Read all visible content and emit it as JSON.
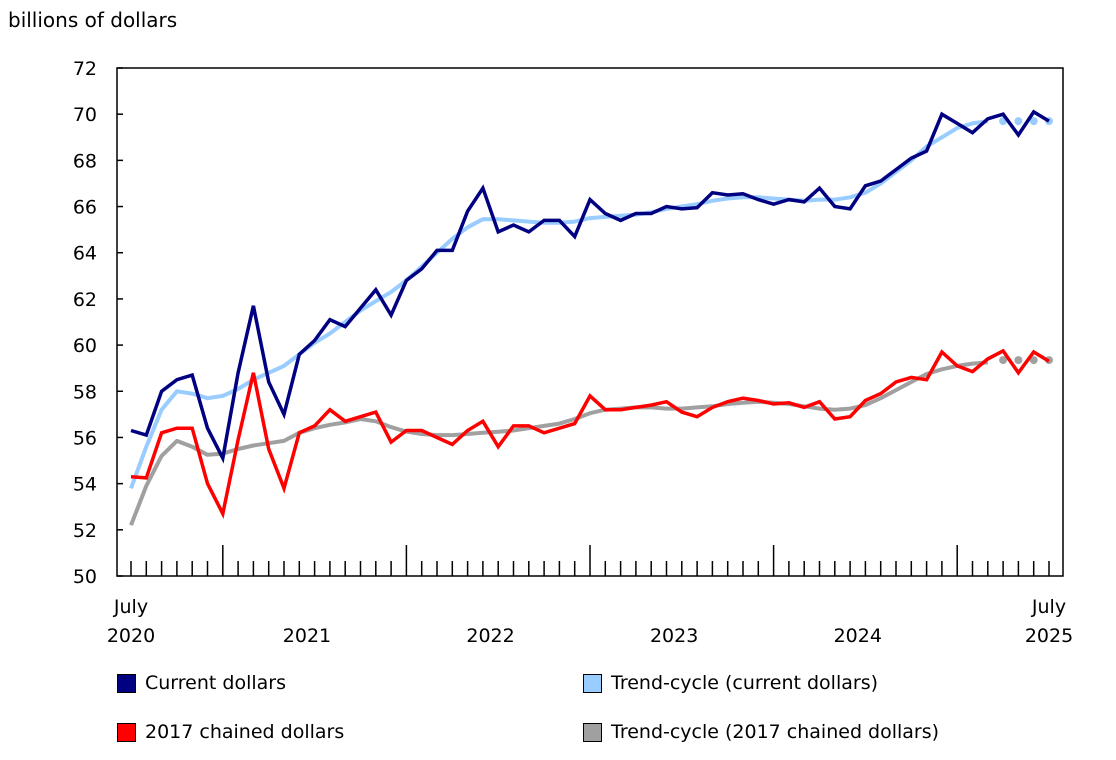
{
  "chart_data": {
    "type": "line",
    "ylabel": "billions of dollars",
    "ylim": [
      50,
      72
    ],
    "yticks": [
      "50",
      "52",
      "54",
      "56",
      "58",
      "60",
      "62",
      "64",
      "66",
      "68",
      "70",
      "72"
    ],
    "x_start": "July 2020",
    "x_end": "July 2025",
    "x_tick_labels": [
      {
        "top": "July",
        "bottom": "2020"
      },
      {
        "top": "",
        "bottom": "2021"
      },
      {
        "top": "",
        "bottom": "2022"
      },
      {
        "top": "",
        "bottom": "2023"
      },
      {
        "top": "",
        "bottom": "2024"
      },
      {
        "top": "July",
        "bottom": "2025"
      }
    ],
    "grid": false,
    "series": [
      {
        "name": "Current dollars",
        "color": "#000080",
        "style": "solid",
        "values": [
          56.3,
          56.1,
          58.0,
          58.5,
          58.7,
          56.4,
          55.1,
          58.8,
          61.7,
          58.4,
          57.0,
          59.6,
          60.2,
          61.1,
          60.8,
          61.6,
          62.4,
          61.3,
          62.8,
          63.3,
          64.1,
          64.1,
          65.8,
          66.8,
          64.9,
          65.2,
          64.9,
          65.4,
          65.4,
          64.7,
          66.3,
          65.7,
          65.4,
          65.7,
          65.7,
          66.0,
          65.9,
          65.95,
          66.6,
          66.5,
          66.55,
          66.3,
          66.1,
          66.3,
          66.2,
          66.8,
          66.0,
          65.9,
          66.9,
          67.1,
          67.6,
          68.1,
          68.4,
          70.0,
          69.6,
          69.2,
          69.8,
          70.0,
          69.1,
          70.1,
          69.7
        ]
      },
      {
        "name": "Trend-cycle (current dollars)",
        "color": "#99CCFF",
        "style": "trend",
        "values": [
          53.8,
          55.6,
          57.2,
          58.0,
          57.9,
          57.7,
          57.8,
          58.1,
          58.5,
          58.8,
          59.1,
          59.6,
          60.1,
          60.5,
          61.0,
          61.5,
          61.9,
          62.3,
          62.8,
          63.4,
          64.0,
          64.6,
          65.1,
          65.45,
          65.45,
          65.4,
          65.35,
          65.3,
          65.3,
          65.35,
          65.5,
          65.55,
          65.6,
          65.65,
          65.75,
          65.9,
          66.0,
          66.1,
          66.25,
          66.35,
          66.4,
          66.4,
          66.35,
          66.3,
          66.25,
          66.3,
          66.3,
          66.4,
          66.6,
          67.0,
          67.5,
          68.0,
          68.6,
          69.0,
          69.4,
          69.6,
          69.7
        ],
        "dotted_values": [
          69.7,
          69.7,
          69.7,
          69.7
        ]
      },
      {
        "name": "2017 chained dollars",
        "color": "#FF0000",
        "style": "solid",
        "values": [
          54.3,
          54.25,
          56.2,
          56.4,
          56.4,
          54.0,
          52.7,
          55.9,
          58.8,
          55.5,
          53.8,
          56.2,
          56.5,
          57.2,
          56.7,
          56.9,
          57.1,
          55.8,
          56.3,
          56.3,
          56.0,
          55.7,
          56.3,
          56.7,
          55.6,
          56.5,
          56.5,
          56.2,
          56.4,
          56.6,
          57.8,
          57.2,
          57.2,
          57.3,
          57.4,
          57.55,
          57.1,
          56.9,
          57.3,
          57.55,
          57.7,
          57.6,
          57.45,
          57.5,
          57.3,
          57.55,
          56.8,
          56.9,
          57.6,
          57.9,
          58.4,
          58.6,
          58.5,
          59.7,
          59.1,
          58.85,
          59.4,
          59.75,
          58.8,
          59.7,
          59.3
        ]
      },
      {
        "name": "Trend-cycle (2017 chained dollars)",
        "color": "#A0A0A0",
        "style": "trend",
        "values": [
          52.2,
          53.9,
          55.2,
          55.85,
          55.6,
          55.25,
          55.3,
          55.5,
          55.65,
          55.75,
          55.85,
          56.2,
          56.4,
          56.55,
          56.65,
          56.8,
          56.7,
          56.45,
          56.25,
          56.15,
          56.1,
          56.1,
          56.15,
          56.2,
          56.25,
          56.3,
          56.4,
          56.5,
          56.6,
          56.8,
          57.05,
          57.2,
          57.25,
          57.3,
          57.3,
          57.25,
          57.25,
          57.3,
          57.35,
          57.45,
          57.5,
          57.55,
          57.5,
          57.45,
          57.35,
          57.25,
          57.2,
          57.25,
          57.4,
          57.7,
          58.05,
          58.4,
          58.75,
          58.95,
          59.1,
          59.2,
          59.25
        ],
        "dotted_values": [
          59.35,
          59.35,
          59.35,
          59.35
        ]
      }
    ],
    "legend": {
      "placement": "bottom"
    }
  }
}
